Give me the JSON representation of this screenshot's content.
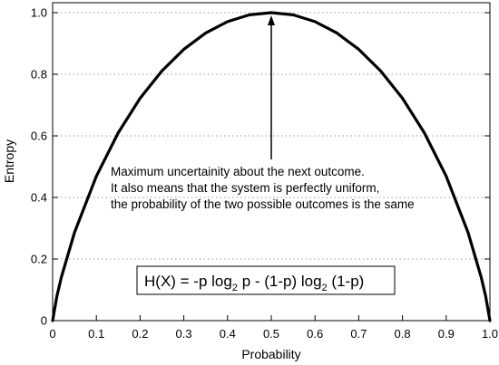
{
  "chart_data": {
    "type": "line",
    "xlabel": "Probability",
    "ylabel": "Entropy",
    "xlim": [
      0,
      1
    ],
    "ylim": [
      0,
      1
    ],
    "xticks": [
      "0",
      "0.1",
      "0.2",
      "0.3",
      "0.4",
      "0.5",
      "0.6",
      "0.7",
      "0.8",
      "0.9",
      "1.0"
    ],
    "yticks": [
      "0",
      "0.2",
      "0.4",
      "0.6",
      "0.8",
      "1.0"
    ],
    "grid": "horizontal dotted",
    "series": [
      {
        "x": [
          0,
          0.01,
          0.02,
          0.05,
          0.1,
          0.15,
          0.2,
          0.25,
          0.3,
          0.35,
          0.4,
          0.45,
          0.5,
          0.55,
          0.6,
          0.65,
          0.7,
          0.75,
          0.8,
          0.85,
          0.9,
          0.95,
          0.98,
          0.99,
          1.0
        ],
        "y": [
          0,
          0.081,
          0.141,
          0.286,
          0.469,
          0.61,
          0.722,
          0.811,
          0.881,
          0.934,
          0.971,
          0.993,
          1.0,
          0.993,
          0.971,
          0.934,
          0.881,
          0.811,
          0.722,
          0.61,
          0.469,
          0.286,
          0.141,
          0.081,
          0
        ],
        "color": "#000000"
      }
    ],
    "annotation": {
      "lines": [
        "Maximum uncertainity about the next outcome.",
        "It also means that the system is perfectly uniform,",
        "the probability of the two possible outcomes is the same"
      ],
      "arrow_target": {
        "x": 0.5,
        "y": 1.0
      }
    },
    "formula": {
      "lead": "H(X) = -p log",
      "sub1": "2",
      "mid": " p - (1-p) log",
      "sub2": "2",
      "tail": " (1-p)"
    }
  }
}
